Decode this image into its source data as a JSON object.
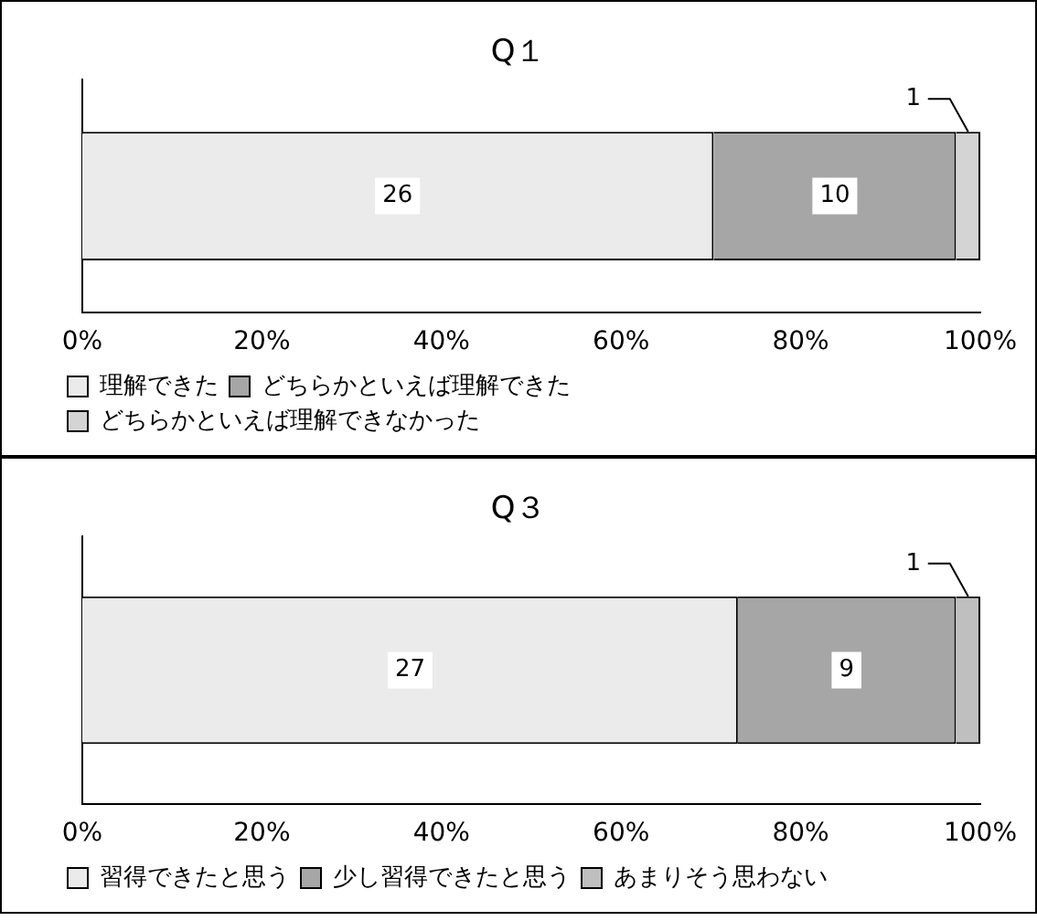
{
  "chart_data": [
    {
      "type": "bar",
      "title": "Q１",
      "orientation": "horizontal",
      "stacked": true,
      "categories": [
        null
      ],
      "xlim": [
        0,
        100
      ],
      "xticks": [
        {
          "value": 0,
          "label": "0%"
        },
        {
          "value": 20,
          "label": "20%"
        },
        {
          "value": 40,
          "label": "40%"
        },
        {
          "value": 60,
          "label": "60%"
        },
        {
          "value": 80,
          "label": "80%"
        },
        {
          "value": 100,
          "label": "100%"
        }
      ],
      "grid": false,
      "legend": "bottom",
      "annotations": [
        {
          "text": "26",
          "x": 35.1
        },
        {
          "text": "10",
          "x": 83.8
        },
        "1"
      ],
      "series": [
        {
          "name": "理解できた",
          "color": "#ebebeb",
          "values": [
            70.3
          ]
        },
        {
          "name": "どちらかといえば理解できた",
          "color": "#a6a6a6",
          "values": [
            27.0
          ]
        },
        {
          "name": "どちらかといえば理解できなかった",
          "color": "#d4d4d4",
          "values": [
            2.7
          ]
        }
      ]
    },
    {
      "type": "bar",
      "title": "Q３",
      "orientation": "horizontal",
      "stacked": true,
      "categories": [
        null
      ],
      "xlim": [
        0,
        100
      ],
      "xticks": [
        {
          "value": 0,
          "label": "0%"
        },
        {
          "value": 20,
          "label": "20%"
        },
        {
          "value": 40,
          "label": "40%"
        },
        {
          "value": 60,
          "label": "60%"
        },
        {
          "value": 80,
          "label": "80%"
        },
        {
          "value": 100,
          "label": "100%"
        }
      ],
      "grid": false,
      "legend": "bottom",
      "annotations": [
        {
          "text": "27",
          "x": 36.5
        },
        {
          "text": "9",
          "x": 85.1
        },
        "1"
      ],
      "series": [
        {
          "name": "習得できたと思う",
          "color": "#ebebeb",
          "values": [
            73.0
          ]
        },
        {
          "name": "少し習得できたと思う",
          "color": "#a6a6a6",
          "values": [
            24.3
          ]
        },
        {
          "name": "あまりそう思わない",
          "color": "#bfbfbf",
          "values": [
            2.7
          ]
        }
      ]
    }
  ]
}
